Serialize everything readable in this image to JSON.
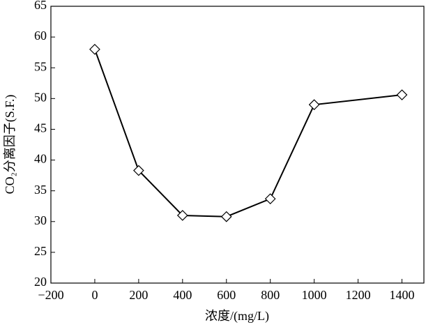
{
  "chart_data": {
    "type": "line",
    "x_label": "浓度/(mg/L)",
    "y_label": "CO₂分离因子(S.F.)",
    "x": [
      0,
      200,
      400,
      600,
      800,
      1000,
      1400
    ],
    "series": [
      {
        "color": "#000000",
        "values": [
          58,
          38.3,
          31,
          30.8,
          33.7,
          49,
          50.6
        ]
      }
    ],
    "xlim": [
      -200,
      1500
    ],
    "xticks": [
      {
        "value": -200,
        "label": "−200"
      },
      0,
      200,
      400,
      600,
      800,
      1000,
      1200,
      1400
    ],
    "ylim": [
      20,
      65
    ],
    "yticks": [
      20,
      25,
      30,
      35,
      40,
      45,
      50,
      55,
      60,
      65
    ],
    "marker": "diamond"
  }
}
